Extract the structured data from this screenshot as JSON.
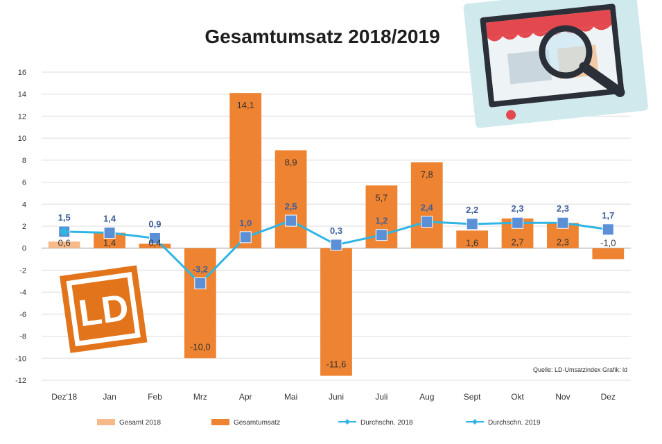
{
  "chart_data": {
    "type": "bar",
    "title": "Gesamtumsatz 2018/2019",
    "categories": [
      "Dez'18",
      "Jan",
      "Feb",
      "Mrz",
      "Apr",
      "Mai",
      "Juni",
      "Juli",
      "Aug",
      "Sept",
      "Okt",
      "Nov",
      "Dez"
    ],
    "ylim": [
      -12,
      16
    ],
    "yticks": [
      -12,
      -10,
      -8,
      -6,
      -4,
      -2,
      0,
      2,
      4,
      6,
      8,
      10,
      12,
      14,
      16
    ],
    "grid": true,
    "legend_position": "bottom",
    "series": [
      {
        "name": "Gesamt 2018",
        "kind": "bar",
        "color": "#f6b98a",
        "values": [
          0.6,
          null,
          null,
          null,
          null,
          null,
          null,
          null,
          null,
          null,
          null,
          null,
          null
        ],
        "labels": [
          "0,6",
          "",
          "",
          "",
          "",
          "",
          "",
          "",
          "",
          "",
          "",
          "",
          ""
        ]
      },
      {
        "name": "Gesamtumsatz",
        "kind": "bar",
        "color": "#ee8332",
        "values": [
          null,
          1.4,
          0.4,
          -10.0,
          14.1,
          8.9,
          -11.6,
          5.7,
          7.8,
          1.6,
          2.7,
          2.3,
          -1.0
        ],
        "labels": [
          "",
          "1,4",
          "0,4",
          "-10,0",
          "14,1",
          "8,9",
          "-11,6",
          "5,7",
          "7,8",
          "1,6",
          "2,7",
          "2,3",
          "-1,0"
        ]
      },
      {
        "name": "Durchschn. 2018",
        "kind": "line",
        "color": "#2fb5e3",
        "values": [
          1.5,
          1.4,
          0.9,
          -3.2,
          1.0,
          2.5,
          0.3,
          1.2,
          2.4,
          2.2,
          2.3,
          2.3,
          1.7
        ],
        "labels": [
          "1,5",
          "1,4",
          "0,9",
          "-3,2",
          "1,0",
          "2,5",
          "0,3",
          "1,2",
          "2,4",
          "2,2",
          "2,3",
          "2,3",
          "1,7"
        ]
      },
      {
        "name": "Durchschn. 2019",
        "kind": "marker",
        "color": "#2fb5e3",
        "values": [
          1.5,
          null,
          null,
          null,
          null,
          null,
          null,
          null,
          null,
          null,
          null,
          null,
          null
        ],
        "labels": [
          "",
          "",
          "",
          "",
          "",
          "",
          "",
          "",
          "",
          "",
          "",
          "",
          ""
        ]
      }
    ],
    "source": "Quelle: LD-Umsatzindex Grafik: ld"
  },
  "colors": {
    "bar_2018": "#f6b98a",
    "bar_total": "#ee8332",
    "line": "#2fb5e3",
    "marker": "#5b8fd6",
    "logo": "#e2741c"
  },
  "decorations": {
    "logo_text": "LD",
    "illustration_icon": "magnifier-shop-icon"
  }
}
